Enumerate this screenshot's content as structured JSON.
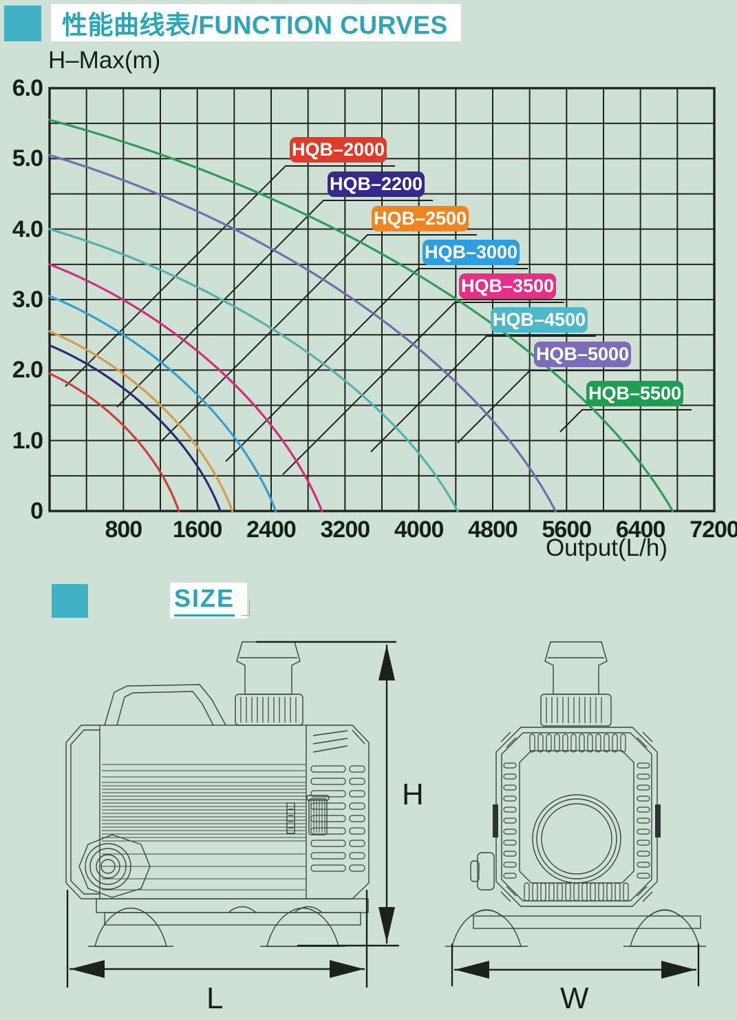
{
  "background": "#cfe1d5",
  "header": {
    "accent_color": "#41b2c6",
    "title": "性能曲线表/FUNCTION CURVES",
    "title_color": "#2aa6b8"
  },
  "chart_data": {
    "type": "line",
    "title": "性能曲线表/FUNCTION CURVES",
    "ylabel": "H–Max(m)",
    "xlabel": "Output(L/h)",
    "xlim": [
      0,
      7200
    ],
    "ylim": [
      0,
      6.0
    ],
    "x_grid_step": 400,
    "y_grid_step": 0.5,
    "grid": true,
    "x_tick_values": [
      800,
      1600,
      2400,
      3200,
      4000,
      4800,
      5600,
      6400,
      7200
    ],
    "x_tick_labels": [
      "800",
      "1600",
      "2400",
      "3200",
      "4000",
      "4800",
      "5600",
      "6400",
      "7200"
    ],
    "y_tick_values": [
      0,
      1,
      2,
      3,
      4,
      5,
      6
    ],
    "y_tick_labels": [
      "0",
      "1.0",
      "2.0",
      "3.0",
      "4.0",
      "5.0",
      "6.0"
    ],
    "series": [
      {
        "name": "HQB–2000",
        "h_max_m": 1.95,
        "q_max_lh": 1400,
        "chip_color": "#e03a2b",
        "curve_color": "#cd4038",
        "label_box": [
          421,
          199
        ],
        "leader_len": 320
      },
      {
        "name": "HQB–2200",
        "h_max_m": 2.35,
        "q_max_lh": 1850,
        "chip_color": "#37288c",
        "curve_color": "#2c2a74",
        "label_box": [
          476,
          249
        ],
        "leader_len": 300
      },
      {
        "name": "HQB–2500",
        "h_max_m": 2.55,
        "q_max_lh": 1980,
        "chip_color": "#ef8522",
        "curve_color": "#d89a4c",
        "label_box": [
          540,
          299
        ],
        "leader_len": 300
      },
      {
        "name": "HQB–3000",
        "h_max_m": 3.05,
        "q_max_lh": 2450,
        "chip_color": "#2b9fe0",
        "curve_color": "#2f9fd6",
        "label_box": [
          614,
          348
        ],
        "leader_len": 280
      },
      {
        "name": "HQB–3500",
        "h_max_m": 3.5,
        "q_max_lh": 2950,
        "chip_color": "#e72f87",
        "curve_color": "#cf2f7c",
        "label_box": [
          667,
          397
        ],
        "leader_len": 250
      },
      {
        "name": "HQB–4500",
        "h_max_m": 4.0,
        "q_max_lh": 4420,
        "chip_color": "#4bb9ca",
        "curve_color": "#56b3ab",
        "label_box": [
          713,
          446
        ],
        "leader_len": 168
      },
      {
        "name": "HQB–5000",
        "h_max_m": 5.05,
        "q_max_lh": 5480,
        "chip_color": "#7b6db8",
        "curve_color": "#766bb0",
        "label_box": [
          776,
          496
        ],
        "leader_len": 105
      },
      {
        "name": "HQB–5500",
        "h_max_m": 5.55,
        "q_max_lh": 6750,
        "chip_color": "#1f9e52",
        "curve_color": "#2d9c57",
        "label_box": [
          852,
          553
        ],
        "leader_len": 32
      }
    ]
  },
  "size_section": {
    "accent_color": "#41b2c6",
    "heading": "SIZE",
    "heading_color": "#2aa6b8",
    "dimensions": {
      "height_label": "H",
      "length_label": "L",
      "width_label": "W"
    }
  }
}
